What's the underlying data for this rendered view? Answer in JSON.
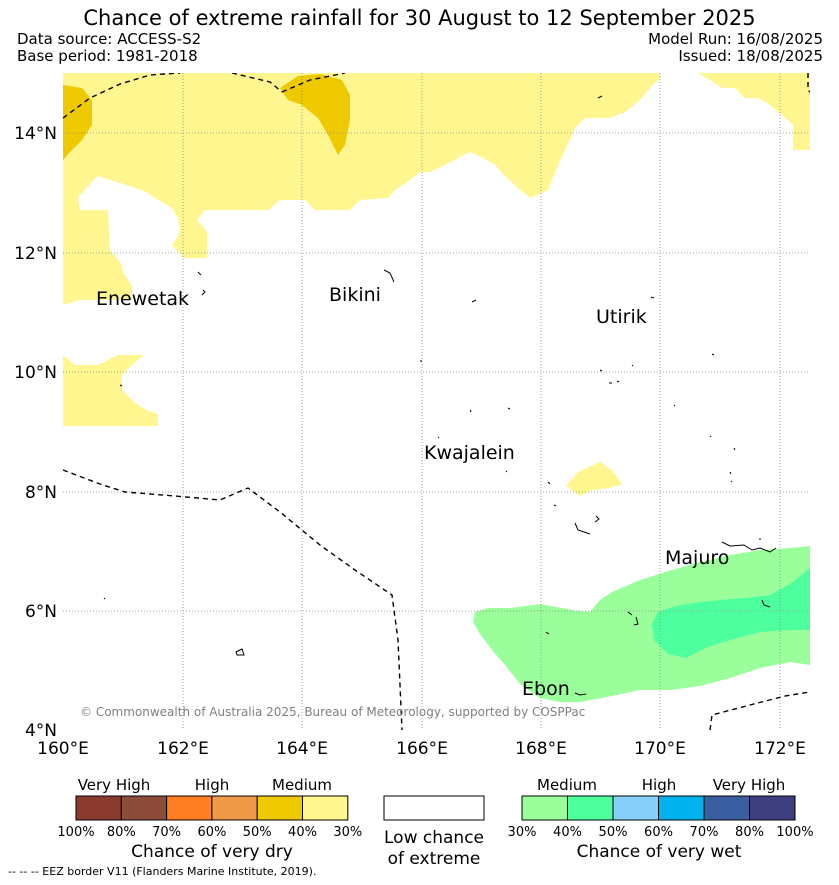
{
  "header": {
    "title": "Chance of extreme rainfall for 30 August to 12 September 2025",
    "data_source": "Data source: ACCESS-S2",
    "base_period": "Base period: 1981-2018",
    "model_run": "Model Run: 16/08/2025",
    "issued": "Issued: 18/08/2025"
  },
  "map": {
    "lat_ticks": [
      "14°N",
      "12°N",
      "10°N",
      "8°N",
      "6°N",
      "4°N"
    ],
    "lon_ticks": [
      "160°E",
      "162°E",
      "164°E",
      "166°E",
      "168°E",
      "170°E",
      "172°E"
    ],
    "places": {
      "enewetak": "Enewetak",
      "bikini": "Bikini",
      "utirik": "Utirik",
      "kwajalein": "Kwajalein",
      "majuro": "Majuro",
      "ebon": "Ebon"
    },
    "copyright": "© Commonwealth of Australia 2025, Bureau of Meteorology, supported by COSPPac",
    "colors": {
      "dry_medium_light": "#fff68f",
      "dry_medium": "#eec900",
      "wet_medium": "#9aff9a",
      "wet_medium_strong": "#4eff9e"
    }
  },
  "legend": {
    "dry": {
      "levels": [
        "Very High",
        "High",
        "Medium"
      ],
      "colors": [
        "#8b3a2e",
        "#8b4c39",
        "#ff7f24",
        "#ee9a49",
        "#eec900",
        "#fff68f"
      ],
      "percents": [
        "100%",
        "80%",
        "70%",
        "60%",
        "50%",
        "40%",
        "30%"
      ],
      "caption": "Chance of very dry"
    },
    "low": {
      "line1": "Low chance",
      "line2": "of extreme"
    },
    "wet": {
      "levels": [
        "Medium",
        "High",
        "Very High"
      ],
      "colors": [
        "#9aff9a",
        "#4eff9e",
        "#87cefa",
        "#00b2ee",
        "#3a5fa0",
        "#3f3f7f"
      ],
      "percents": [
        "30%",
        "40%",
        "50%",
        "60%",
        "70%",
        "80%",
        "100%"
      ],
      "caption": "Chance of very wet"
    }
  },
  "footnote": "--  --  -- EEZ border V11 (Flanders Marine Institute, 2019)."
}
